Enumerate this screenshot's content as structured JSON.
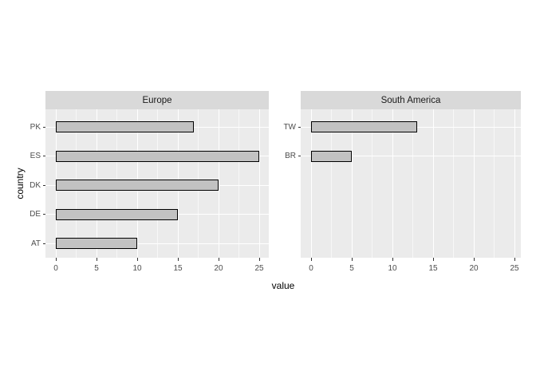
{
  "chart_data": {
    "type": "bar",
    "orientation": "horizontal",
    "xlabel": "value",
    "ylabel": "country",
    "x_ticks": [
      0,
      5,
      10,
      15,
      20,
      25
    ],
    "x_minor_ticks": [
      2.5,
      7.5,
      12.5,
      17.5,
      22.5
    ],
    "xlim": [
      -1.25,
      26.25
    ],
    "grid": true,
    "legend": "none",
    "row_slots": 5,
    "facets": [
      {
        "title": "Europe",
        "categories": [
          "PK",
          "ES",
          "DK",
          "DE",
          "AT"
        ],
        "values": [
          17,
          25,
          20,
          15,
          10
        ]
      },
      {
        "title": "South America",
        "categories": [
          "TW",
          "BR"
        ],
        "values": [
          13,
          5
        ]
      }
    ],
    "colors": {
      "background": "#FFFFFF",
      "panel_bg": "#EBEBEB",
      "strip_bg": "#D9D9D9",
      "grid_line": "#FFFFFF",
      "bar_fill": "#C2C2C2",
      "bar_stroke": "#000000",
      "tick_mark": "#333333",
      "tick_label": "#4D4D4D",
      "strip_text": "#1A1A1A",
      "axis_title": "#000000"
    }
  }
}
